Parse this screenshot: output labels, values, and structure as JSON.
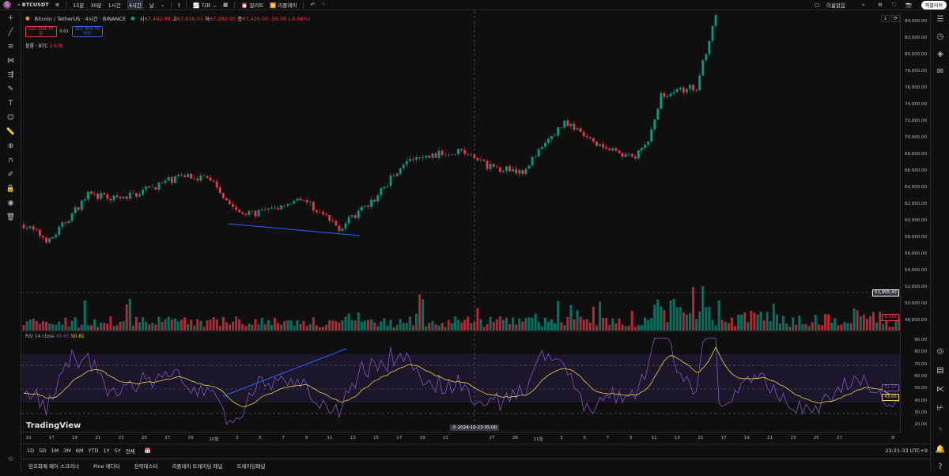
{
  "topbar": {
    "avatar": "S",
    "symbol": "BTCUSDT",
    "intervals": [
      "15분",
      "30분",
      "1시간",
      "4시간",
      "날"
    ],
    "active_interval": "4시간",
    "indicators": "지표",
    "alert": "얼러트",
    "replay": "리플레이",
    "layout_name": "이름없음",
    "publish": "퍼블리쉬"
  },
  "legend": {
    "title": "Bitcoin / TetherUS · 4시간 · BINANCE",
    "o_label": "시",
    "o": "67,482.99",
    "h_label": "고",
    "h": "67,836.01",
    "l_label": "저",
    "l": "67,292.00",
    "c_label": "종",
    "c": "67,426.00",
    "change": "-56.98 (-0.08%)",
    "sell_price": "102,304.75",
    "sell_label": "팔",
    "spread": "0.01",
    "buy_price": "102,304.76",
    "buy_label": "바이",
    "volume_label": "볼륨 · BTC",
    "volume_value": "1.67K"
  },
  "rsi": {
    "label": "RSI 14 close",
    "value": "45.65",
    "ma": "50.81",
    "tag_rsi": "51.07",
    "tag_ma": "43.65",
    "axis": [
      "90.00",
      "80.00",
      "70.00",
      "60.00",
      "50.00",
      "40.00",
      "30.00",
      "20.00"
    ]
  },
  "price_axis": [
    "84,000.00",
    "82,000.00",
    "80,000.00",
    "78,000.00",
    "76,000.00",
    "74,000.00",
    "72,000.00",
    "70,000.00",
    "68,000.00",
    "66,000.00",
    "64,000.00",
    "62,000.00",
    "60,000.00",
    "58,000.00",
    "56,000.00",
    "54,000.00",
    "52,000.00",
    "50,000.00",
    "48,000.00"
  ],
  "crosshair": {
    "price": "51,905.43",
    "volume_tag": "5.01K",
    "time": "수 2024-10-23  05:00"
  },
  "time_axis": [
    "15",
    "17",
    "19",
    "21",
    "23",
    "25",
    "27",
    "29",
    "10월",
    "3",
    "5",
    "7",
    "9",
    "11",
    "13",
    "15",
    "17",
    "19",
    "21",
    "",
    "27",
    "29",
    "11월",
    "3",
    "5",
    "7",
    "9",
    "11",
    "13",
    "15",
    "17",
    "19",
    "21",
    "23",
    "25",
    "27"
  ],
  "watermark": "TradingView",
  "ranges": [
    "1D",
    "5D",
    "1M",
    "3M",
    "6M",
    "YTD",
    "1Y",
    "5Y",
    "전체"
  ],
  "clock": "23:21:33 UTC+9",
  "bottom_tabs": [
    "암호화폐 페어 스크리너",
    "Pine 에디터",
    "전략테스터",
    "리플레이 트레이딩 패널",
    "트레이딩패널"
  ],
  "colors": {
    "up": "#089981",
    "down": "#f23645",
    "rsi": "#7e57c2",
    "ma": "#f0d34a",
    "trend": "#2962ff"
  },
  "chart_data": {
    "type": "candlestick",
    "price_path": [
      [
        0,
        60000
      ],
      [
        8,
        58000
      ],
      [
        20,
        63600
      ],
      [
        30,
        63000
      ],
      [
        50,
        66000
      ],
      [
        58,
        65500
      ],
      [
        67,
        61200
      ],
      [
        76,
        61600
      ],
      [
        86,
        63300
      ],
      [
        98,
        59600
      ],
      [
        108,
        62600
      ],
      [
        118,
        67500
      ],
      [
        135,
        69000
      ],
      [
        145,
        66900
      ],
      [
        155,
        66500
      ],
      [
        168,
        72400
      ],
      [
        178,
        69500
      ],
      [
        190,
        68000
      ],
      [
        194,
        70000
      ],
      [
        198,
        75600
      ],
      [
        209,
        76600
      ],
      [
        215,
        85000
      ]
    ]
  }
}
